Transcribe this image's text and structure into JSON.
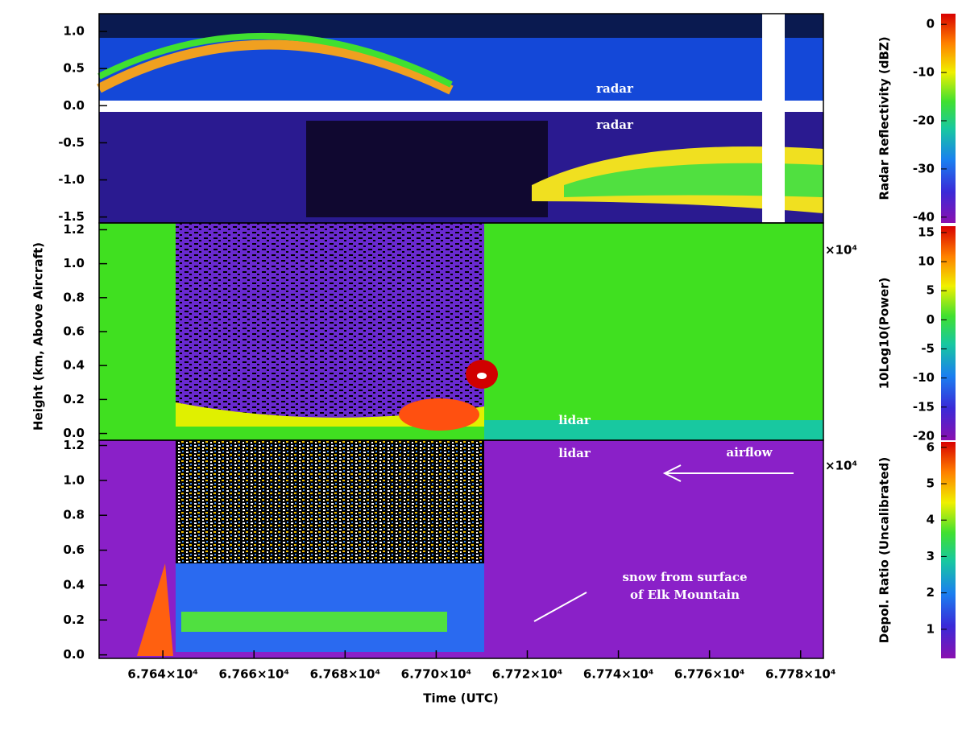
{
  "chart_data": [
    {
      "type": "heatmap",
      "xlim": [
        67626,
        67785
      ],
      "ylim": [
        -1.58,
        1.24
      ],
      "yticks": [
        {
          "value": 1,
          "label": "1.0"
        },
        0.5,
        {
          "value": 0,
          "label": "0.0"
        },
        -0.5,
        {
          "value": -1,
          "label": "-1.0"
        },
        -1.5
      ],
      "colorbar": {
        "label": "Radar Reflectivity (dBZ)",
        "lim": [
          -41.2,
          2.2
        ],
        "ticks": [
          0,
          -10,
          -20,
          -30,
          -40
        ]
      },
      "annotations": [
        "radar",
        "radar"
      ]
    },
    {
      "type": "heatmap",
      "ylabel": "Height (km, Above Aircraft)",
      "xlim": [
        67626,
        67785
      ],
      "ylim": [
        -0.04,
        1.24
      ],
      "yticks": [
        {
          "value": 0,
          "label": "0.0"
        },
        0.2,
        0.4,
        0.6,
        0.8,
        {
          "value": 1,
          "label": "1.0"
        },
        1.2
      ],
      "colorbar": {
        "label": "10Log10(Power)",
        "lim": [
          -20.7,
          16.1
        ],
        "ticks": [
          15,
          10,
          5,
          0,
          -5,
          -10,
          -15,
          -20
        ],
        "multiplier": "×10⁴"
      },
      "annotations": [
        "lidar"
      ]
    },
    {
      "type": "heatmap",
      "xlabel": "Time (UTC)",
      "xlim": [
        67626,
        67785
      ],
      "xticks": [
        {
          "value": 67640,
          "label": "6.764×10⁴"
        },
        {
          "value": 67660,
          "label": "6.766×10⁴"
        },
        {
          "value": 67680,
          "label": "6.768×10⁴"
        },
        {
          "value": 67700,
          "label": "6.770×10⁴"
        },
        {
          "value": 67720,
          "label": "6.772×10⁴"
        },
        {
          "value": 67740,
          "label": "6.774×10⁴"
        },
        {
          "value": 67760,
          "label": "6.776×10⁴"
        },
        {
          "value": 67780,
          "label": "6.778×10⁴"
        }
      ],
      "ylim": [
        -0.02,
        1.23
      ],
      "yticks": [
        {
          "value": 0,
          "label": "0.0"
        },
        0.2,
        0.4,
        0.6,
        0.8,
        {
          "value": 1,
          "label": "1.0"
        },
        1.2
      ],
      "colorbar": {
        "label": "Depol. Ratio (Uncalibrated)",
        "lim": [
          0.2,
          6.15
        ],
        "ticks": [
          6,
          5,
          4,
          3,
          2,
          1
        ],
        "multiplier": "×10⁴"
      },
      "annotations": [
        "lidar",
        "airflow",
        "snow from surface",
        "of Elk Mountain"
      ]
    }
  ]
}
